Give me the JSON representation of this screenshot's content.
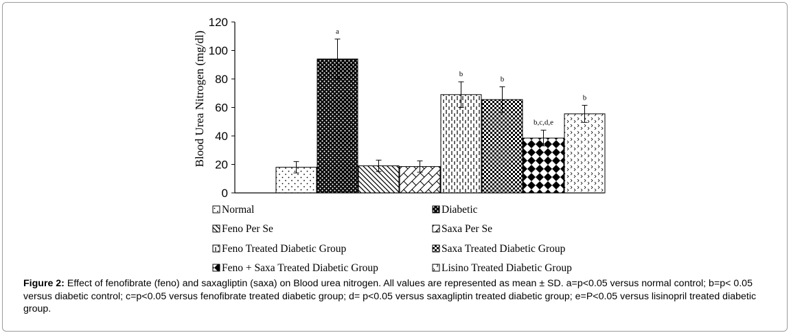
{
  "chart_data": {
    "type": "bar",
    "ylabel": "Blood Urea Nitrogen (mg/dl)",
    "xlabel": "",
    "ylim": [
      0,
      120
    ],
    "yticks": [
      0,
      20,
      40,
      60,
      80,
      100,
      120
    ],
    "grid": false,
    "legend_position": "bottom",
    "series": [
      {
        "name": "Normal",
        "value": 18,
        "error": 4,
        "annotation": "",
        "pattern": "dots"
      },
      {
        "name": "Diabetic",
        "value": 94,
        "error": 14,
        "annotation": "a",
        "pattern": "dark-checker"
      },
      {
        "name": "Feno Per Se",
        "value": 19,
        "error": 4,
        "annotation": "",
        "pattern": "diag-down"
      },
      {
        "name": "Saxa Per Se",
        "value": 18.5,
        "error": 4,
        "annotation": "",
        "pattern": "diag-up"
      },
      {
        "name": "Feno Treated Diabetic Group",
        "value": 69,
        "error": 9,
        "annotation": "b",
        "pattern": "vertical-dash"
      },
      {
        "name": "Saxa Treated Diabetic Group",
        "value": 65.5,
        "error": 9,
        "annotation": "b",
        "pattern": "checker"
      },
      {
        "name": "Feno + Saxa Treated Diabetic Group",
        "value": 38.5,
        "error": 5.5,
        "annotation": "b,c,d,e",
        "pattern": "diamond"
      },
      {
        "name": "Lisino Treated Diabetic Group",
        "value": 55.5,
        "error": 6,
        "annotation": "b",
        "pattern": "chevron"
      }
    ]
  },
  "caption": {
    "label": "Figure 2:",
    "text": " Effect of fenofibrate (feno) and saxagliptin (saxa) on Blood urea nitrogen. All values are represented as mean ± SD. a=p<0.05 versus normal control; b=p< 0.05 versus diabetic control; c=p<0.05 versus fenofibrate treated diabetic group; d= p<0.05 versus saxagliptin treated diabetic group; e=P<0.05 versus lisinopril treated diabetic group."
  }
}
